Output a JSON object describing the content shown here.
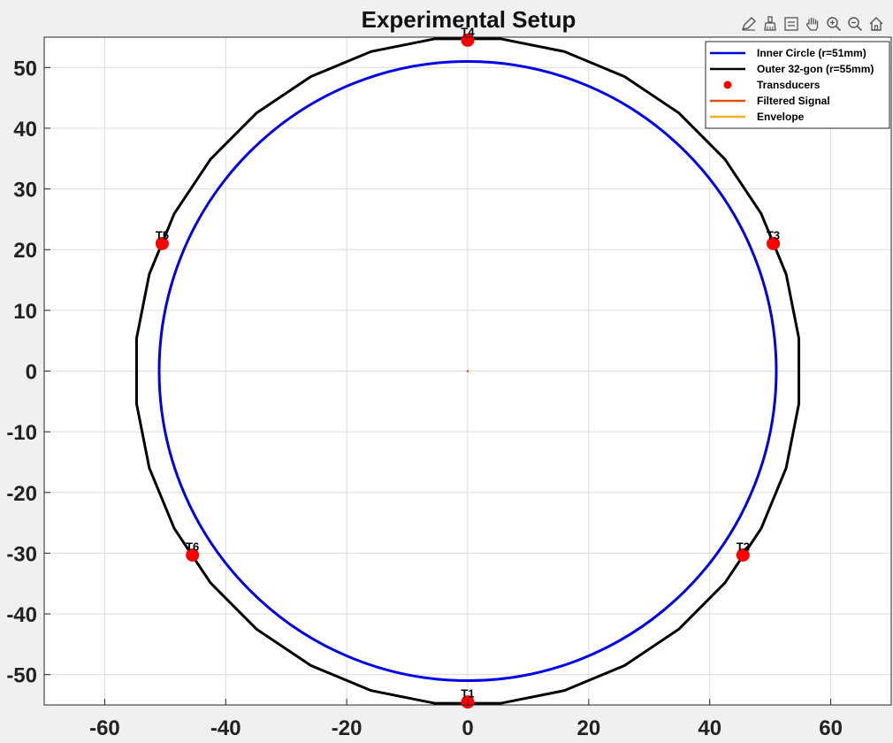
{
  "toolbar": {
    "icons": [
      "edit-plot-icon",
      "brush-icon",
      "legend-toggle-icon",
      "pan-hand-icon",
      "zoom-in-icon",
      "zoom-out-icon",
      "home-icon"
    ]
  },
  "colors": {
    "inner": "#0000e6",
    "outer": "#000000",
    "transducer": "#ff0000",
    "filtered": "#d95319",
    "envelope": "#edb120",
    "grid": "#dcdcdc"
  },
  "chart_data": {
    "type": "line",
    "title": "Experimental Setup",
    "xlim": [
      -70,
      70
    ],
    "ylim": [
      -55,
      55
    ],
    "xticks": [
      -60,
      -40,
      -20,
      0,
      20,
      40,
      60
    ],
    "yticks": [
      -50,
      -40,
      -30,
      -20,
      -10,
      0,
      10,
      20,
      30,
      40,
      50
    ],
    "grid": true,
    "legend_position": "top-right",
    "legend": [
      {
        "label": "Inner Circle (r=51mm)",
        "kind": "line",
        "color": "#0000e6"
      },
      {
        "label": "Outer 32-gon (r=55mm)",
        "kind": "line",
        "color": "#000000"
      },
      {
        "label": "Transducers",
        "kind": "marker",
        "color": "#ff0000"
      },
      {
        "label": "Filtered Signal",
        "kind": "line",
        "color": "#d95319"
      },
      {
        "label": "Envelope",
        "kind": "line",
        "color": "#edb120"
      }
    ],
    "inner_circle": {
      "center": [
        0,
        0
      ],
      "radius": 51
    },
    "outer_polygon": {
      "sides": 32,
      "radius": 55
    },
    "transducers": [
      {
        "label": "T1",
        "x": 0,
        "y": -54.5
      },
      {
        "label": "T2",
        "x": 45.5,
        "y": -30.3
      },
      {
        "label": "T3",
        "x": 50.5,
        "y": 21
      },
      {
        "label": "T4",
        "x": 0,
        "y": 54.5
      },
      {
        "label": "T5",
        "x": -50.5,
        "y": 21
      },
      {
        "label": "T6",
        "x": -45.5,
        "y": -30.3
      }
    ],
    "filtered_signal_point": {
      "x": 0,
      "y": 0
    }
  }
}
